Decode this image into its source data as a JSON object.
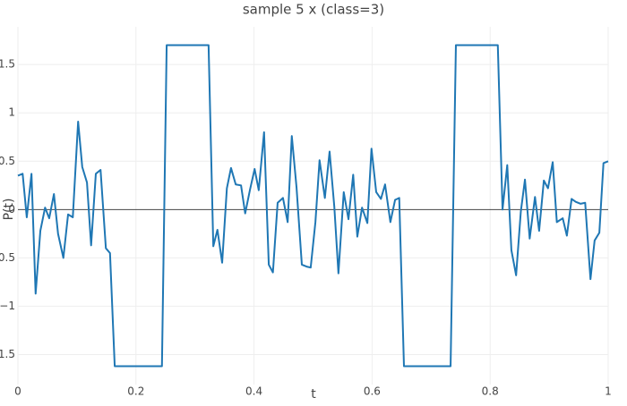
{
  "chart_data": {
    "type": "line",
    "title": "sample 5 x (class=3)",
    "x_label": "t",
    "y_label": "P(t)",
    "x": [
      0,
      0.008,
      0.015,
      0.023,
      0.03,
      0.038,
      0.046,
      0.053,
      0.061,
      0.068,
      0.077,
      0.085,
      0.093,
      0.102,
      0.109,
      0.117,
      0.124,
      0.132,
      0.14,
      0.149,
      0.156,
      0.164,
      0.244,
      0.252,
      0.323,
      0.331,
      0.338,
      0.346,
      0.354,
      0.361,
      0.369,
      0.378,
      0.385,
      0.393,
      0.401,
      0.408,
      0.417,
      0.425,
      0.432,
      0.44,
      0.449,
      0.457,
      0.464,
      0.472,
      0.481,
      0.489,
      0.496,
      0.504,
      0.511,
      0.52,
      0.528,
      0.536,
      0.543,
      0.552,
      0.56,
      0.568,
      0.575,
      0.583,
      0.592,
      0.599,
      0.607,
      0.615,
      0.622,
      0.631,
      0.639,
      0.646,
      0.654,
      0.733,
      0.742,
      0.813,
      0.821,
      0.829,
      0.836,
      0.844,
      0.852,
      0.859,
      0.867,
      0.876,
      0.883,
      0.891,
      0.898,
      0.906,
      0.913,
      0.923,
      0.93,
      0.938,
      0.945,
      0.953,
      0.961,
      0.97,
      0.977,
      0.985,
      0.992,
      1
    ],
    "series": [
      {
        "name": "x",
        "color": "#1f77b4",
        "values": [
          0.35,
          0.37,
          -0.08,
          0.37,
          -0.87,
          -0.22,
          0.02,
          -0.09,
          0.16,
          -0.25,
          -0.5,
          -0.05,
          -0.08,
          0.91,
          0.44,
          0.28,
          -0.37,
          0.37,
          0.41,
          -0.4,
          -0.45,
          -1.62,
          -1.62,
          1.7,
          1.7,
          -0.38,
          -0.21,
          -0.55,
          0.22,
          0.43,
          0.26,
          0.25,
          -0.04,
          0.2,
          0.42,
          0.2,
          0.8,
          -0.57,
          -0.65,
          0.07,
          0.12,
          -0.13,
          0.76,
          0.23,
          -0.57,
          -0.59,
          -0.6,
          -0.13,
          0.51,
          0.12,
          0.6,
          0.03,
          -0.66,
          0.18,
          -0.1,
          0.36,
          -0.28,
          0.02,
          -0.14,
          0.63,
          0.18,
          0.11,
          0.26,
          -0.13,
          0.1,
          0.12,
          -1.62,
          -1.62,
          1.7,
          1.7,
          0.0,
          0.46,
          -0.42,
          -0.68,
          -0.02,
          0.31,
          -0.3,
          0.13,
          -0.22,
          0.3,
          0.22,
          0.49,
          -0.13,
          -0.09,
          -0.27,
          0.11,
          0.08,
          0.06,
          0.07,
          -0.72,
          -0.32,
          -0.24,
          0.48,
          0.5
        ]
      }
    ],
    "xlim": [
      0,
      1
    ],
    "ylim": [
      -1.81,
      1.89
    ],
    "xticks": [
      0,
      0.2,
      0.4,
      0.6,
      0.8,
      1
    ],
    "yticks": [
      {
        "value": -1.5,
        "label": "−1.5"
      },
      {
        "value": -1,
        "label": "−1"
      },
      {
        "value": -0.5,
        "label": "−0.5"
      },
      0,
      0.5,
      1,
      1.5
    ],
    "grid": true,
    "zeroline": true
  }
}
